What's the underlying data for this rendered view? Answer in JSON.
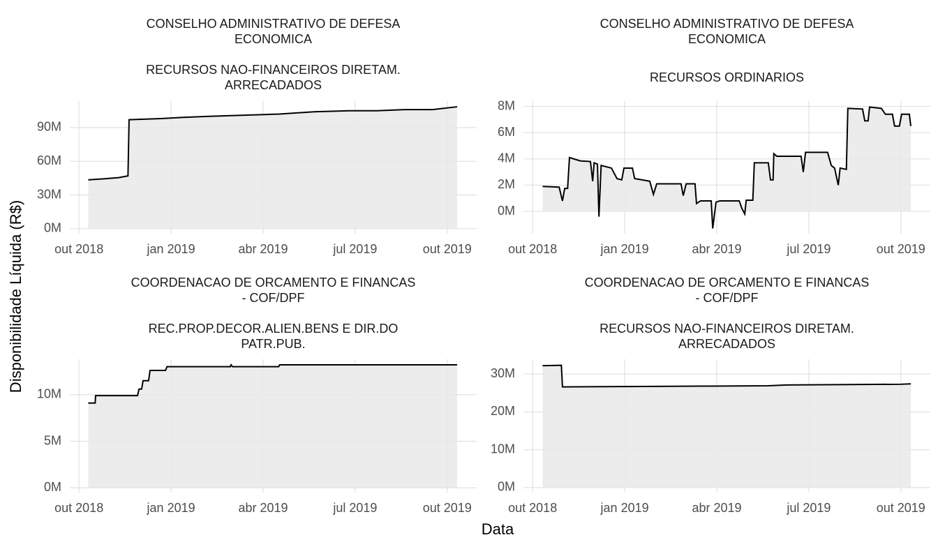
{
  "ylabel": "Disponibilidade Líquida (R$)",
  "xlabel": "Data",
  "chart_data": [
    {
      "type": "area",
      "title_lines": [
        "CONSELHO ADMINISTRATIVO DE DEFESA",
        "ECONOMICA"
      ],
      "subtitle_lines": [
        "RECURSOS NAO-FINANCEIROS DIRETAM.",
        "ARRECADADOS"
      ],
      "x": [
        2018.775,
        2018.82,
        2018.858,
        2018.883,
        2018.886,
        2018.972,
        2019.028,
        2019.104,
        2019.199,
        2019.294,
        2019.388,
        2019.483,
        2019.559,
        2019.634,
        2019.71,
        2019.777
      ],
      "values": [
        43.5,
        44.5,
        45.5,
        47,
        97,
        98,
        99,
        100,
        101,
        102,
        104,
        105,
        105,
        106,
        106,
        108.5
      ],
      "xlim": [
        2018.725,
        2019.83
      ],
      "xticks": [
        {
          "value": 2018.75,
          "label": "out 2018"
        },
        {
          "value": 2019.0,
          "label": "jan 2019"
        },
        {
          "value": 2019.25,
          "label": "abr 2019"
        },
        {
          "value": 2019.5,
          "label": "jul 2019"
        },
        {
          "value": 2019.75,
          "label": "out 2019"
        }
      ],
      "ylim": [
        -4.4,
        113.5
      ],
      "yticks": [
        {
          "value": 0,
          "label": "0M"
        },
        {
          "value": 30,
          "label": "30M"
        },
        {
          "value": 60,
          "label": "60M"
        },
        {
          "value": 90,
          "label": "90M"
        }
      ],
      "color": "#000000",
      "fill": "#e9e9e9",
      "grid": true
    },
    {
      "type": "area",
      "title_lines": [
        "CONSELHO ADMINISTRATIVO DE DEFESA",
        "ECONOMICA"
      ],
      "subtitle_lines": [
        "RECURSOS ORDINARIOS"
      ],
      "x": [
        2018.777,
        2018.822,
        2018.831,
        2018.837,
        2018.845,
        2018.85,
        2018.879,
        2018.907,
        2018.913,
        2018.917,
        2018.926,
        2018.93,
        2018.936,
        2018.964,
        2018.979,
        2018.992,
        2018.998,
        2019.021,
        2019.027,
        2019.068,
        2019.078,
        2019.087,
        2019.153,
        2019.159,
        2019.167,
        2019.191,
        2019.195,
        2019.206,
        2019.235,
        2019.239,
        2019.248,
        2019.258,
        2019.311,
        2019.318,
        2019.326,
        2019.33,
        2019.348,
        2019.352,
        2019.39,
        2019.396,
        2019.403,
        2019.405,
        2019.413,
        2019.479,
        2019.485,
        2019.491,
        2019.551,
        2019.561,
        2019.57,
        2019.58,
        2019.585,
        2019.602,
        2019.606,
        2019.646,
        2019.652,
        2019.661,
        2019.665,
        2019.697,
        2019.708,
        2019.727,
        2019.733,
        2019.746,
        2019.752,
        2019.773,
        2019.777
      ],
      "values": [
        1.9,
        1.85,
        0.8,
        1.75,
        1.75,
        4.1,
        3.85,
        3.8,
        2.3,
        3.7,
        3.6,
        -0.4,
        3.5,
        3.3,
        2.5,
        2.4,
        3.3,
        3.3,
        2.5,
        2.3,
        1.3,
        2.1,
        2.1,
        1.2,
        2.1,
        2.1,
        0.6,
        0.8,
        0.8,
        -1.3,
        0.7,
        0.8,
        0.8,
        0.25,
        -0.2,
        0.85,
        0.85,
        3.7,
        3.7,
        2.4,
        2.4,
        4.4,
        4.2,
        4.2,
        3.0,
        4.5,
        4.5,
        3.5,
        3.3,
        2.0,
        3.3,
        3.2,
        7.85,
        7.8,
        6.9,
        6.9,
        7.95,
        7.85,
        7.4,
        7.4,
        6.5,
        6.5,
        7.4,
        7.4,
        6.5
      ],
      "xlim": [
        2018.725,
        2019.83
      ],
      "xticks": [
        {
          "value": 2018.75,
          "label": "out 2018"
        },
        {
          "value": 2019.0,
          "label": "jan 2019"
        },
        {
          "value": 2019.25,
          "label": "abr 2019"
        },
        {
          "value": 2019.5,
          "label": "jul 2019"
        },
        {
          "value": 2019.75,
          "label": "out 2019"
        }
      ],
      "ylim": [
        -1.7,
        8.4
      ],
      "yticks": [
        {
          "value": 0,
          "label": "0M"
        },
        {
          "value": 2,
          "label": "2M"
        },
        {
          "value": 4,
          "label": "4M"
        },
        {
          "value": 6,
          "label": "6M"
        },
        {
          "value": 8,
          "label": "8M"
        }
      ],
      "color": "#000000",
      "fill": "#e9e9e9",
      "grid": true
    },
    {
      "type": "area",
      "title_lines": [
        "COORDENACAO DE ORCAMENTO E FINANCAS",
        "- COF/DPF"
      ],
      "subtitle_lines": [
        "REC.PROP.DECOR.ALIEN.BENS E DIR.DO",
        "PATR.PUB."
      ],
      "x": [
        2018.775,
        2018.794,
        2018.795,
        2018.909,
        2018.913,
        2018.92,
        2018.924,
        2018.939,
        2018.943,
        2018.985,
        2018.989,
        2019.161,
        2019.163,
        2019.167,
        2019.292,
        2019.295,
        2019.777
      ],
      "values": [
        9.1,
        9.1,
        9.9,
        9.9,
        10.6,
        10.6,
        11.5,
        11.5,
        12.6,
        12.6,
        13.0,
        13.0,
        13.2,
        13.0,
        13.0,
        13.2,
        13.2
      ],
      "xlim": [
        2018.725,
        2019.83
      ],
      "xticks": [
        {
          "value": 2018.75,
          "label": "out 2018"
        },
        {
          "value": 2019.0,
          "label": "jan 2019"
        },
        {
          "value": 2019.25,
          "label": "abr 2019"
        },
        {
          "value": 2019.5,
          "label": "jul 2019"
        },
        {
          "value": 2019.75,
          "label": "out 2019"
        }
      ],
      "ylim": [
        -0.5,
        13.8
      ],
      "yticks": [
        {
          "value": 0,
          "label": "0M"
        },
        {
          "value": 5,
          "label": "5M"
        },
        {
          "value": 10,
          "label": "10M"
        }
      ],
      "color": "#000000",
      "fill": "#e9e9e9",
      "grid": true
    },
    {
      "type": "area",
      "title_lines": [
        "COORDENACAO DE ORCAMENTO E FINANCAS",
        "- COF/DPF"
      ],
      "subtitle_lines": [
        "RECURSOS NAO-FINANCEIROS DIRETAM.",
        "ARRECADADOS"
      ],
      "x": [
        2018.777,
        2018.828,
        2018.831,
        2019.011,
        2019.201,
        2019.39,
        2019.438,
        2019.58,
        2019.75,
        2019.777
      ],
      "values": [
        32.2,
        32.3,
        26.6,
        26.7,
        26.8,
        26.9,
        27.1,
        27.2,
        27.3,
        27.4
      ],
      "xlim": [
        2018.725,
        2019.83
      ],
      "xticks": [
        {
          "value": 2018.75,
          "label": "out 2018"
        },
        {
          "value": 2019.0,
          "label": "jan 2019"
        },
        {
          "value": 2019.25,
          "label": "abr 2019"
        },
        {
          "value": 2019.5,
          "label": "jul 2019"
        },
        {
          "value": 2019.75,
          "label": "out 2019"
        }
      ],
      "ylim": [
        -1.3,
        33.9
      ],
      "yticks": [
        {
          "value": 0,
          "label": "0M"
        },
        {
          "value": 10,
          "label": "10M"
        },
        {
          "value": 20,
          "label": "20M"
        },
        {
          "value": 30,
          "label": "30M"
        }
      ],
      "color": "#000000",
      "fill": "#e9e9e9",
      "grid": true
    }
  ]
}
